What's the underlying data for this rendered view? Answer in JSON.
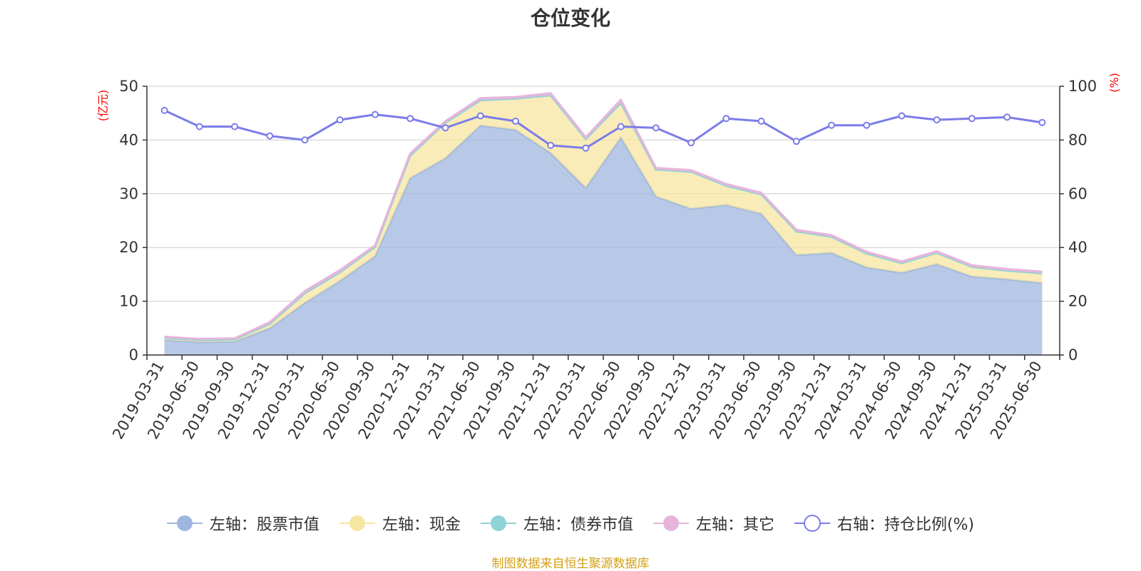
{
  "chart_data": {
    "type": "area",
    "title": "仓位变化",
    "y_left": {
      "label": "(亿元)",
      "ylim": [
        0,
        50
      ],
      "ticks": [
        0,
        10,
        20,
        30,
        40,
        50
      ]
    },
    "y_right": {
      "label": "(%)",
      "ylim": [
        0,
        100
      ],
      "ticks": [
        0,
        20,
        40,
        60,
        80,
        100
      ]
    },
    "categories": [
      "2019-03-31",
      "2019-06-30",
      "2019-09-30",
      "2019-12-31",
      "2020-03-31",
      "2020-06-30",
      "2020-09-30",
      "2020-12-31",
      "2021-03-31",
      "2021-06-30",
      "2021-09-30",
      "2021-12-31",
      "2022-03-31",
      "2022-06-30",
      "2022-09-30",
      "2022-12-31",
      "2023-03-31",
      "2023-06-30",
      "2023-09-30",
      "2023-12-31",
      "2024-03-31",
      "2024-06-30",
      "2024-09-30",
      "2024-12-31",
      "2025-03-31",
      "2025-06-30"
    ],
    "series": [
      {
        "name": "左轴：股票市值",
        "axis": "left",
        "type": "area",
        "color": "#9fb7de",
        "values": [
          2.8,
          2.4,
          2.5,
          5.0,
          9.7,
          13.8,
          18.4,
          32.9,
          36.6,
          42.7,
          41.9,
          37.6,
          31.1,
          40.5,
          29.5,
          27.2,
          27.9,
          26.3,
          18.6,
          19.0,
          16.3,
          15.3,
          16.9,
          14.6,
          14.1,
          13.4
        ]
      },
      {
        "name": "左轴：现金",
        "axis": "left",
        "type": "area",
        "color": "#f7e6a0",
        "values": [
          0.4,
          0.4,
          0.4,
          0.8,
          1.8,
          1.6,
          1.7,
          4.2,
          6.6,
          4.7,
          5.8,
          10.7,
          9.1,
          6.4,
          5.0,
          6.9,
          3.6,
          3.6,
          4.4,
          3.0,
          2.6,
          1.8,
          2.1,
          1.8,
          1.6,
          1.8
        ]
      },
      {
        "name": "左轴：债券市值",
        "axis": "left",
        "type": "area",
        "color": "#8fd3d6",
        "values": [
          0,
          0,
          0,
          0,
          0,
          0,
          0,
          0,
          0,
          0,
          0,
          0,
          0,
          0,
          0,
          0,
          0,
          0,
          0,
          0,
          0,
          0,
          0,
          0,
          0,
          0
        ]
      },
      {
        "name": "左轴：其它",
        "axis": "left",
        "type": "area",
        "color": "#e7b5dc",
        "values": [
          0.2,
          0.2,
          0.2,
          0.3,
          0.4,
          0.4,
          0.3,
          0.4,
          0.3,
          0.4,
          0.3,
          0.4,
          0.3,
          0.6,
          0.3,
          0.3,
          0.3,
          0.3,
          0.3,
          0.3,
          0.3,
          0.3,
          0.3,
          0.3,
          0.3,
          0.3
        ]
      },
      {
        "name": "右轴：持仓比例(%)",
        "axis": "right",
        "type": "line",
        "color": "#7b7ce8",
        "values": [
          91.0,
          85.0,
          85.0,
          81.5,
          80.0,
          87.5,
          89.5,
          88.0,
          84.5,
          89.0,
          87.0,
          78.0,
          77.0,
          85.0,
          84.5,
          79.0,
          88.0,
          87.0,
          79.5,
          85.5,
          85.5,
          89.0,
          87.5,
          88.0,
          88.5,
          86.5
        ]
      }
    ],
    "grid": true,
    "legend_position": "bottom"
  },
  "credit": "制图数据来自恒生聚源数据库"
}
